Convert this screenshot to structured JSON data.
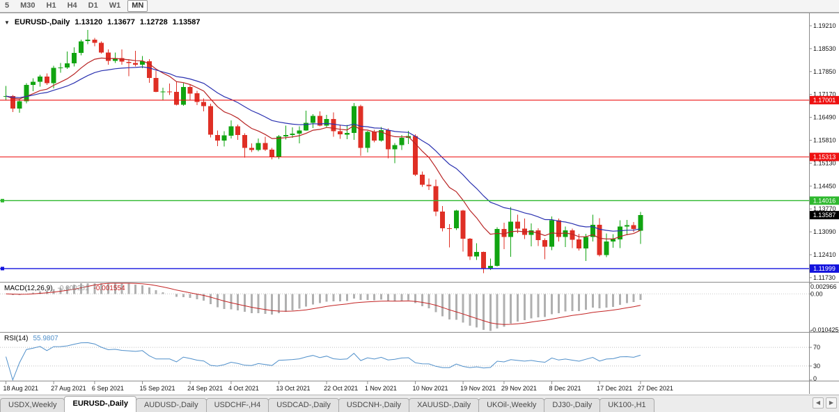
{
  "toolbar": {
    "timeframes": [
      "5",
      "M30",
      "H1",
      "H4",
      "D1",
      "W1",
      "MN"
    ],
    "active": "MN"
  },
  "chart_header": {
    "menu_icon": "▼",
    "symbol": "EURUSD-,Daily",
    "open": "1.13120",
    "high": "1.13677",
    "low": "1.12728",
    "close": "1.13587"
  },
  "indicators": {
    "macd": {
      "title": "MACD(12,26,9)",
      "value_main": "-0.000281",
      "value_signal": "-0.001554"
    },
    "rsi": {
      "title": "RSI(14)",
      "value": "55.9807"
    }
  },
  "tabs": {
    "scroll_left_icon": "◀",
    "scroll_right_icon": "▶",
    "items": [
      {
        "label": "USDX,Weekly",
        "active": false
      },
      {
        "label": "EURUSD-,Daily",
        "active": true
      },
      {
        "label": "AUDUSD-,Daily",
        "active": false
      },
      {
        "label": "USDCHF-,H4",
        "active": false
      },
      {
        "label": "USDCAD-,Daily",
        "active": false
      },
      {
        "label": "USDCNH-,Daily",
        "active": false
      },
      {
        "label": "XAUUSD-,Daily",
        "active": false
      },
      {
        "label": "UKOil-,Weekly",
        "active": false
      },
      {
        "label": "DJ30-,Daily",
        "active": false
      },
      {
        "label": "UK100-,H1",
        "active": false
      }
    ]
  },
  "chart_data": {
    "type": "candlestick",
    "title": "EURUSD-,Daily",
    "candle_colors": {
      "up": "#11a411",
      "down": "#df2f25"
    },
    "y_axis_labels": [
      "1.19210",
      "1.18530",
      "1.17850",
      "1.17170",
      "1.16490",
      "1.15810",
      "1.15130",
      "1.14450",
      "1.13770",
      "1.13090",
      "1.12410",
      "1.11730"
    ],
    "x_ticks": [
      {
        "i": 0,
        "label": "18 Aug 2021"
      },
      {
        "i": 7,
        "label": "27 Aug 2021"
      },
      {
        "i": 13,
        "label": "6 Sep 2021"
      },
      {
        "i": 20,
        "label": "15 Sep 2021"
      },
      {
        "i": 27,
        "label": "24 Sep 2021"
      },
      {
        "i": 33,
        "label": "4 Oct 2021"
      },
      {
        "i": 40,
        "label": "13 Oct 2021"
      },
      {
        "i": 47,
        "label": "22 Oct 2021"
      },
      {
        "i": 53,
        "label": "1 Nov 2021"
      },
      {
        "i": 60,
        "label": "10 Nov 2021"
      },
      {
        "i": 67,
        "label": "19 Nov 2021"
      },
      {
        "i": 73,
        "label": "29 Nov 2021"
      },
      {
        "i": 80,
        "label": "8 Dec 2021"
      },
      {
        "i": 87,
        "label": "17 Dec 2021"
      },
      {
        "i": 93,
        "label": "27 Dec 2021"
      }
    ],
    "hlines": [
      {
        "price": 1.17001,
        "label": "1.17001",
        "color": "#ee1111",
        "width": 1.1
      },
      {
        "price": 1.15313,
        "label": "1.15313",
        "color": "#ee1111",
        "width": 1.1
      },
      {
        "price": 1.14016,
        "label": "1.14016",
        "color": "#2eb82e",
        "width": 1.4,
        "anchor": true
      },
      {
        "price": 1.11999,
        "label": "1.11999",
        "color": "#1313dd",
        "width": 1.4,
        "anchor": true
      }
    ],
    "current_price": {
      "price": 1.13587,
      "label": "1.13587",
      "bg": "#000000",
      "fg": "#ffffff"
    },
    "overlays": [
      {
        "name": "ma-fast",
        "type": "ema",
        "period": 10,
        "color": "#b82323"
      },
      {
        "name": "ma-slow",
        "type": "ema",
        "period": 21,
        "color": "#2a31b0"
      }
    ],
    "candles": [
      [
        1.171,
        1.1742,
        1.1701,
        1.1712
      ],
      [
        1.1712,
        1.1715,
        1.1665,
        1.1675
      ],
      [
        1.1675,
        1.1704,
        1.1663,
        1.1697
      ],
      [
        1.1697,
        1.175,
        1.1691,
        1.1745
      ],
      [
        1.1745,
        1.1765,
        1.1727,
        1.1755
      ],
      [
        1.1755,
        1.1775,
        1.174,
        1.177
      ],
      [
        1.177,
        1.1779,
        1.1745,
        1.1751
      ],
      [
        1.1751,
        1.1802,
        1.1735,
        1.1796
      ],
      [
        1.1796,
        1.181,
        1.1782,
        1.1797
      ],
      [
        1.1797,
        1.1845,
        1.1793,
        1.1809
      ],
      [
        1.1809,
        1.1857,
        1.18,
        1.184
      ],
      [
        1.184,
        1.188,
        1.1833,
        1.1875
      ],
      [
        1.1875,
        1.1909,
        1.1866,
        1.188
      ],
      [
        1.188,
        1.1885,
        1.186,
        1.187
      ],
      [
        1.187,
        1.1874,
        1.1838,
        1.1841
      ],
      [
        1.1841,
        1.1851,
        1.1805,
        1.1817
      ],
      [
        1.1817,
        1.1841,
        1.181,
        1.1825
      ],
      [
        1.1825,
        1.1851,
        1.1805,
        1.1814
      ],
      [
        1.1814,
        1.1822,
        1.1771,
        1.181
      ],
      [
        1.181,
        1.1847,
        1.18,
        1.1805
      ],
      [
        1.1805,
        1.1831,
        1.1795,
        1.1816
      ],
      [
        1.1816,
        1.1822,
        1.1751,
        1.1766
      ],
      [
        1.1766,
        1.1788,
        1.1724,
        1.1725
      ],
      [
        1.1725,
        1.1737,
        1.17,
        1.1726
      ],
      [
        1.1726,
        1.1749,
        1.1715,
        1.1725
      ],
      [
        1.1725,
        1.1756,
        1.1684,
        1.1686
      ],
      [
        1.1686,
        1.175,
        1.1683,
        1.1739
      ],
      [
        1.1739,
        1.1747,
        1.1701,
        1.172
      ],
      [
        1.172,
        1.1728,
        1.1685,
        1.1695
      ],
      [
        1.1695,
        1.1705,
        1.1667,
        1.1682
      ],
      [
        1.1682,
        1.169,
        1.1589,
        1.1597
      ],
      [
        1.1597,
        1.161,
        1.1563,
        1.158
      ],
      [
        1.158,
        1.1608,
        1.1562,
        1.1595
      ],
      [
        1.1595,
        1.164,
        1.1586,
        1.1622
      ],
      [
        1.1622,
        1.1627,
        1.1582,
        1.1597
      ],
      [
        1.1597,
        1.1602,
        1.1529,
        1.1558
      ],
      [
        1.1558,
        1.1572,
        1.1546,
        1.1552
      ],
      [
        1.1552,
        1.1586,
        1.1548,
        1.1573
      ],
      [
        1.1573,
        1.1591,
        1.1549,
        1.1553
      ],
      [
        1.1553,
        1.1558,
        1.1524,
        1.1531
      ],
      [
        1.1531,
        1.1597,
        1.1525,
        1.1592
      ],
      [
        1.1592,
        1.1624,
        1.1583,
        1.1596
      ],
      [
        1.1596,
        1.1619,
        1.1588,
        1.1601
      ],
      [
        1.1601,
        1.1622,
        1.1572,
        1.161
      ],
      [
        1.161,
        1.1669,
        1.1609,
        1.1633
      ],
      [
        1.1633,
        1.1658,
        1.1617,
        1.1653
      ],
      [
        1.1653,
        1.1667,
        1.1622,
        1.1624
      ],
      [
        1.1624,
        1.1656,
        1.162,
        1.1644
      ],
      [
        1.1644,
        1.1664,
        1.1591,
        1.1608
      ],
      [
        1.1608,
        1.1627,
        1.1585,
        1.1598
      ],
      [
        1.1598,
        1.1626,
        1.1584,
        1.1603
      ],
      [
        1.1603,
        1.1692,
        1.1582,
        1.1682
      ],
      [
        1.1682,
        1.1686,
        1.1535,
        1.1558
      ],
      [
        1.1558,
        1.1609,
        1.1545,
        1.1606
      ],
      [
        1.1606,
        1.1612,
        1.1575,
        1.158
      ],
      [
        1.158,
        1.162,
        1.1577,
        1.1611
      ],
      [
        1.1611,
        1.1616,
        1.1527,
        1.1554
      ],
      [
        1.1554,
        1.1573,
        1.1513,
        1.1567
      ],
      [
        1.1567,
        1.1596,
        1.1552,
        1.1588
      ],
      [
        1.1588,
        1.1609,
        1.157,
        1.1593
      ],
      [
        1.1593,
        1.1599,
        1.1475,
        1.1479
      ],
      [
        1.1479,
        1.1488,
        1.1443,
        1.1449
      ],
      [
        1.1449,
        1.1467,
        1.1433,
        1.1445
      ],
      [
        1.1445,
        1.1464,
        1.1356,
        1.1369
      ],
      [
        1.1369,
        1.1386,
        1.131,
        1.132
      ],
      [
        1.132,
        1.1332,
        1.1263,
        1.1319
      ],
      [
        1.1319,
        1.1374,
        1.1314,
        1.1372
      ],
      [
        1.1372,
        1.1374,
        1.125,
        1.1289
      ],
      [
        1.1289,
        1.1291,
        1.1226,
        1.1236
      ],
      [
        1.1236,
        1.1275,
        1.1226,
        1.1249
      ],
      [
        1.1249,
        1.125,
        1.1186,
        1.1199
      ],
      [
        1.1199,
        1.123,
        1.1196,
        1.1208
      ],
      [
        1.1208,
        1.1323,
        1.1206,
        1.1317
      ],
      [
        1.1317,
        1.1336,
        1.1258,
        1.1294
      ],
      [
        1.1294,
        1.1383,
        1.1235,
        1.1339
      ],
      [
        1.1339,
        1.136,
        1.1305,
        1.1319
      ],
      [
        1.1319,
        1.1348,
        1.1288,
        1.13
      ],
      [
        1.13,
        1.1334,
        1.1266,
        1.1313
      ],
      [
        1.1313,
        1.132,
        1.1267,
        1.1284
      ],
      [
        1.1284,
        1.129,
        1.1228,
        1.1265
      ],
      [
        1.1265,
        1.1355,
        1.1254,
        1.1343
      ],
      [
        1.1343,
        1.1348,
        1.128,
        1.1294
      ],
      [
        1.1294,
        1.1325,
        1.1264,
        1.1313
      ],
      [
        1.1313,
        1.1319,
        1.1261,
        1.1286
      ],
      [
        1.1286,
        1.1303,
        1.1253,
        1.126
      ],
      [
        1.126,
        1.1303,
        1.1222,
        1.1294
      ],
      [
        1.1294,
        1.136,
        1.128,
        1.133
      ],
      [
        1.133,
        1.135,
        1.1236,
        1.124
      ],
      [
        1.124,
        1.1304,
        1.1234,
        1.128
      ],
      [
        1.128,
        1.1302,
        1.1262,
        1.1287
      ],
      [
        1.1287,
        1.1343,
        1.1261,
        1.1325
      ],
      [
        1.1325,
        1.1344,
        1.1299,
        1.1329
      ],
      [
        1.1329,
        1.1338,
        1.1308,
        1.1317
      ],
      [
        1.1312,
        1.13677,
        1.12728,
        1.13587
      ]
    ],
    "subcharts": [
      {
        "type": "macd_histogram",
        "fast": 12,
        "slow": 26,
        "signal": 9,
        "colors": {
          "hist": "#b0b0b0",
          "signal": "#c32222"
        },
        "range": [
          -0.010425,
          0.002966
        ],
        "axis_labels": [
          {
            "v": 0.002966,
            "label": "0.002966"
          },
          {
            "v": 0,
            "label": "0.00"
          },
          {
            "v": -0.010425,
            "label": "-0.010425"
          }
        ]
      },
      {
        "type": "rsi",
        "period": 14,
        "color": "#4f8fca",
        "levels": [
          70,
          30
        ],
        "range": [
          0,
          100
        ],
        "axis_labels": [
          {
            "v": 70,
            "label": "70"
          },
          {
            "v": 30,
            "label": "30"
          },
          {
            "v": 0,
            "label": "0"
          }
        ]
      }
    ]
  }
}
